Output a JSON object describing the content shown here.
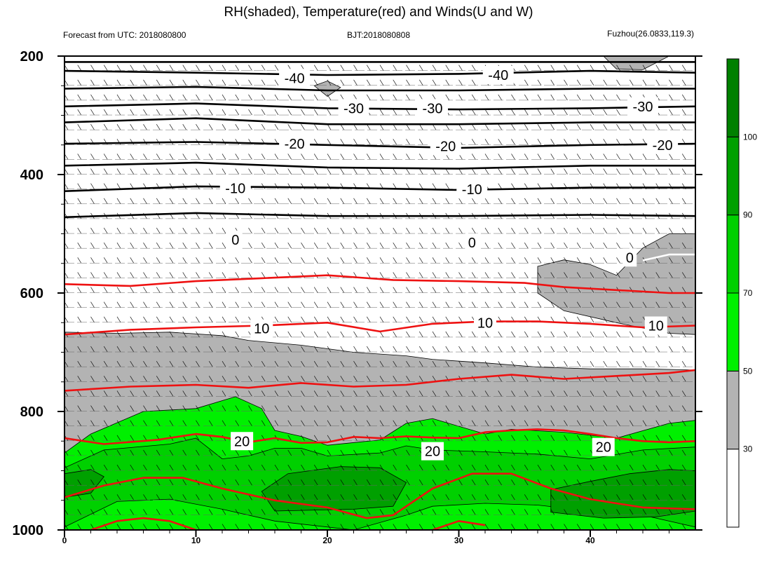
{
  "chart_data": {
    "type": "heatmap",
    "title": "RH(shaded), Temperature(red) and Winds(U and W)",
    "subtitle_left": "Forecast from UTC: 2018080800",
    "subtitle_center": "BJT:2018080808",
    "subtitle_right": "Fuzhou(26.0833,119.3)",
    "x_axis": {
      "range": [
        0,
        48
      ],
      "ticks": [
        0,
        10,
        20,
        30,
        40
      ],
      "tick_labels": [
        "0",
        "10",
        "20",
        "30",
        "40"
      ]
    },
    "y_axis": {
      "range": [
        1000,
        200
      ],
      "ticks": [
        200,
        400,
        600,
        800,
        1000
      ],
      "tick_labels": [
        "200",
        "400",
        "600",
        "800",
        "1000"
      ],
      "inverted": true
    },
    "colorbar": {
      "levels": [
        30,
        50,
        70,
        90,
        100
      ],
      "labels": [
        "30",
        "50",
        "70",
        "90",
        "100"
      ],
      "colors": [
        "#ffffff",
        "#b3b3b3",
        "#00f000",
        "#00d000",
        "#00a000",
        "#008000"
      ]
    },
    "rh_regions": [
      {
        "level": 1,
        "points": [
          [
            0,
            666
          ],
          [
            4,
            668
          ],
          [
            8,
            666
          ],
          [
            12,
            672
          ],
          [
            14,
            680
          ],
          [
            18,
            688
          ],
          [
            22,
            700
          ],
          [
            26,
            706
          ],
          [
            28,
            712
          ],
          [
            32,
            718
          ],
          [
            36,
            725
          ],
          [
            40,
            728
          ],
          [
            44,
            728
          ],
          [
            48,
            730
          ],
          [
            48,
            1000
          ],
          [
            0,
            1000
          ]
        ]
      },
      {
        "level": 1,
        "points": [
          [
            36,
            555
          ],
          [
            38,
            544
          ],
          [
            40,
            552
          ],
          [
            42,
            570
          ],
          [
            44,
            524
          ],
          [
            46,
            500
          ],
          [
            48,
            500
          ],
          [
            48,
            670
          ],
          [
            46,
            668
          ],
          [
            42,
            650
          ],
          [
            38,
            630
          ],
          [
            36,
            600
          ]
        ]
      },
      {
        "level": 1,
        "points": [
          [
            19,
            250
          ],
          [
            20,
            242
          ],
          [
            21,
            253
          ],
          [
            20,
            268
          ]
        ]
      },
      {
        "level": 1,
        "points": [
          [
            41,
            200
          ],
          [
            46,
            200
          ],
          [
            44,
            223
          ],
          [
            42,
            222
          ]
        ]
      },
      {
        "level": 2,
        "points": [
          [
            0,
            870
          ],
          [
            2,
            838
          ],
          [
            6,
            800
          ],
          [
            10,
            795
          ],
          [
            13,
            775
          ],
          [
            15,
            795
          ],
          [
            16,
            832
          ],
          [
            18,
            842
          ],
          [
            20,
            857
          ],
          [
            24,
            848
          ],
          [
            26,
            820
          ],
          [
            28,
            812
          ],
          [
            32,
            838
          ],
          [
            34,
            830
          ],
          [
            38,
            835
          ],
          [
            42,
            845
          ],
          [
            46,
            820
          ],
          [
            48,
            815
          ],
          [
            48,
            1000
          ],
          [
            0,
            1000
          ]
        ]
      },
      {
        "level": 3,
        "points": [
          [
            0,
            895
          ],
          [
            3,
            865
          ],
          [
            8,
            855
          ],
          [
            10,
            845
          ],
          [
            12,
            880
          ],
          [
            14,
            875
          ],
          [
            16,
            862
          ],
          [
            18,
            862
          ],
          [
            20,
            875
          ],
          [
            24,
            870
          ],
          [
            26,
            858
          ],
          [
            28,
            865
          ],
          [
            32,
            868
          ],
          [
            36,
            872
          ],
          [
            40,
            880
          ],
          [
            44,
            865
          ],
          [
            48,
            860
          ],
          [
            48,
            995
          ],
          [
            44,
            975
          ],
          [
            40,
            968
          ],
          [
            36,
            958
          ],
          [
            32,
            955
          ],
          [
            28,
            960
          ],
          [
            26,
            975
          ],
          [
            22,
            1000
          ],
          [
            16,
            985
          ],
          [
            12,
            965
          ],
          [
            8,
            948
          ],
          [
            4,
            952
          ],
          [
            0,
            995
          ]
        ]
      },
      {
        "level": 4,
        "points": [
          [
            0,
            905
          ],
          [
            2,
            898
          ],
          [
            3,
            910
          ],
          [
            2,
            938
          ],
          [
            0,
            945
          ]
        ]
      },
      {
        "level": 4,
        "points": [
          [
            15,
            935
          ],
          [
            17,
            905
          ],
          [
            21,
            893
          ],
          [
            24,
            895
          ],
          [
            26,
            920
          ],
          [
            25,
            960
          ],
          [
            22,
            965
          ],
          [
            16,
            968
          ]
        ]
      },
      {
        "level": 4,
        "points": [
          [
            37,
            932
          ],
          [
            40,
            918
          ],
          [
            43,
            905
          ],
          [
            46,
            898
          ],
          [
            48,
            900
          ],
          [
            48,
            968
          ],
          [
            45,
            978
          ],
          [
            41,
            980
          ],
          [
            37,
            970
          ]
        ]
      }
    ],
    "temperature_contours": [
      {
        "label": "20",
        "points": [
          [
            0,
            845
          ],
          [
            3,
            855
          ],
          [
            7,
            848
          ],
          [
            10,
            838
          ],
          [
            12,
            843
          ],
          [
            14,
            852
          ],
          [
            16,
            845
          ],
          [
            18,
            853
          ],
          [
            20,
            852
          ],
          [
            22,
            843
          ],
          [
            24,
            845
          ],
          [
            26,
            842
          ],
          [
            28,
            844
          ],
          [
            30,
            845
          ],
          [
            32,
            835
          ],
          [
            34,
            832
          ],
          [
            36,
            830
          ],
          [
            38,
            832
          ],
          [
            40,
            838
          ],
          [
            42,
            845
          ],
          [
            44,
            850
          ],
          [
            46,
            852
          ],
          [
            48,
            850
          ]
        ]
      },
      {
        "label": "10",
        "points": [
          [
            0,
            670
          ],
          [
            5,
            662
          ],
          [
            10,
            658
          ],
          [
            15,
            655
          ],
          [
            20,
            650
          ],
          [
            24,
            665
          ],
          [
            28,
            652
          ],
          [
            32,
            648
          ],
          [
            36,
            648
          ],
          [
            40,
            652
          ],
          [
            44,
            658
          ],
          [
            48,
            655
          ]
        ]
      },
      {
        "label": "",
        "points": [
          [
            0,
            585
          ],
          [
            5,
            588
          ],
          [
            10,
            580
          ],
          [
            15,
            575
          ],
          [
            20,
            570
          ],
          [
            25,
            578
          ],
          [
            30,
            580
          ],
          [
            35,
            583
          ],
          [
            38,
            590
          ],
          [
            42,
            595
          ],
          [
            46,
            600
          ],
          [
            48,
            600
          ]
        ]
      },
      {
        "label": "",
        "points": [
          [
            0,
            765
          ],
          [
            5,
            758
          ],
          [
            10,
            755
          ],
          [
            14,
            760
          ],
          [
            18,
            752
          ],
          [
            22,
            758
          ],
          [
            26,
            755
          ],
          [
            30,
            745
          ],
          [
            34,
            738
          ],
          [
            38,
            745
          ],
          [
            42,
            740
          ],
          [
            46,
            735
          ],
          [
            48,
            730
          ]
        ]
      },
      {
        "label": "",
        "points": [
          [
            0,
            945
          ],
          [
            3,
            925
          ],
          [
            6,
            912
          ],
          [
            9,
            912
          ],
          [
            12,
            930
          ],
          [
            16,
            950
          ],
          [
            20,
            962
          ],
          [
            23,
            980
          ],
          [
            25,
            975
          ],
          [
            28,
            930
          ],
          [
            31,
            905
          ],
          [
            34,
            905
          ],
          [
            37,
            930
          ],
          [
            40,
            948
          ],
          [
            44,
            962
          ],
          [
            48,
            965
          ]
        ]
      },
      {
        "label": "",
        "points": [
          [
            2,
            1000
          ],
          [
            4,
            985
          ],
          [
            6,
            980
          ],
          [
            8,
            985
          ],
          [
            10,
            1000
          ]
        ]
      },
      {
        "label": "",
        "points": [
          [
            28,
            1000
          ],
          [
            30,
            985
          ],
          [
            32,
            992
          ]
        ]
      }
    ],
    "black_contours": [
      {
        "label": "-40",
        "points": [
          [
            0,
            225
          ],
          [
            10,
            228
          ],
          [
            20,
            232
          ],
          [
            30,
            230
          ],
          [
            40,
            225
          ],
          [
            48,
            228
          ]
        ]
      },
      {
        "label": "-30",
        "points": [
          [
            0,
            285
          ],
          [
            10,
            280
          ],
          [
            20,
            288
          ],
          [
            30,
            290
          ],
          [
            40,
            288
          ],
          [
            48,
            285
          ]
        ]
      },
      {
        "label": "-20",
        "points": [
          [
            0,
            348
          ],
          [
            10,
            345
          ],
          [
            20,
            350
          ],
          [
            30,
            355
          ],
          [
            40,
            350
          ],
          [
            48,
            348
          ]
        ]
      },
      {
        "label": "-10",
        "points": [
          [
            0,
            428
          ],
          [
            10,
            420
          ],
          [
            20,
            422
          ],
          [
            30,
            426
          ],
          [
            40,
            422
          ],
          [
            48,
            422
          ]
        ]
      },
      {
        "label": "",
        "points": [
          [
            0,
            210
          ],
          [
            48,
            210
          ]
        ]
      },
      {
        "label": "",
        "points": [
          [
            0,
            255
          ],
          [
            10,
            252
          ],
          [
            20,
            258
          ],
          [
            30,
            258
          ],
          [
            40,
            255
          ],
          [
            48,
            255
          ]
        ]
      },
      {
        "label": "",
        "points": [
          [
            0,
            312
          ],
          [
            10,
            305
          ],
          [
            20,
            315
          ],
          [
            30,
            315
          ],
          [
            40,
            312
          ],
          [
            48,
            312
          ]
        ]
      },
      {
        "label": "",
        "points": [
          [
            0,
            385
          ],
          [
            10,
            380
          ],
          [
            20,
            388
          ],
          [
            30,
            390
          ],
          [
            40,
            385
          ],
          [
            48,
            385
          ]
        ]
      },
      {
        "label": "",
        "points": [
          [
            0,
            472
          ],
          [
            10,
            465
          ],
          [
            20,
            470
          ],
          [
            30,
            470
          ],
          [
            40,
            468
          ],
          [
            48,
            470
          ]
        ]
      }
    ],
    "white_contours": [
      {
        "label": "0",
        "points": [
          [
            44,
            545
          ],
          [
            46,
            535
          ],
          [
            48,
            535
          ]
        ]
      }
    ],
    "contour_labels": [
      {
        "text": "-40",
        "x": 17.5,
        "y": 237,
        "color": "black"
      },
      {
        "text": "-40",
        "x": 33,
        "y": 232,
        "color": "black"
      },
      {
        "text": "-30",
        "x": 22,
        "y": 288,
        "color": "black"
      },
      {
        "text": "-30",
        "x": 28,
        "y": 288,
        "color": "black"
      },
      {
        "text": "-30",
        "x": 44,
        "y": 285,
        "color": "black"
      },
      {
        "text": "-20",
        "x": 17.5,
        "y": 348,
        "color": "black"
      },
      {
        "text": "-20",
        "x": 29,
        "y": 352,
        "color": "black"
      },
      {
        "text": "-20",
        "x": 45.5,
        "y": 350,
        "color": "black"
      },
      {
        "text": "-10",
        "x": 13,
        "y": 423,
        "color": "black"
      },
      {
        "text": "-10",
        "x": 31,
        "y": 425,
        "color": "black"
      },
      {
        "text": "0",
        "x": 13,
        "y": 510,
        "color": "black"
      },
      {
        "text": "0",
        "x": 31,
        "y": 515,
        "color": "black"
      },
      {
        "text": "0",
        "x": 43,
        "y": 540,
        "color": "black"
      },
      {
        "text": "10",
        "x": 15,
        "y": 660,
        "color": "black"
      },
      {
        "text": "10",
        "x": 32,
        "y": 650,
        "color": "black"
      },
      {
        "text": "10",
        "x": 45,
        "y": 655,
        "color": "black"
      },
      {
        "text": "20",
        "x": 13.5,
        "y": 850,
        "color": "black"
      },
      {
        "text": "20",
        "x": 28,
        "y": 867,
        "color": "black"
      },
      {
        "text": "20",
        "x": 41,
        "y": 860,
        "color": "black"
      }
    ],
    "grid": false,
    "wind_barbs": true
  }
}
